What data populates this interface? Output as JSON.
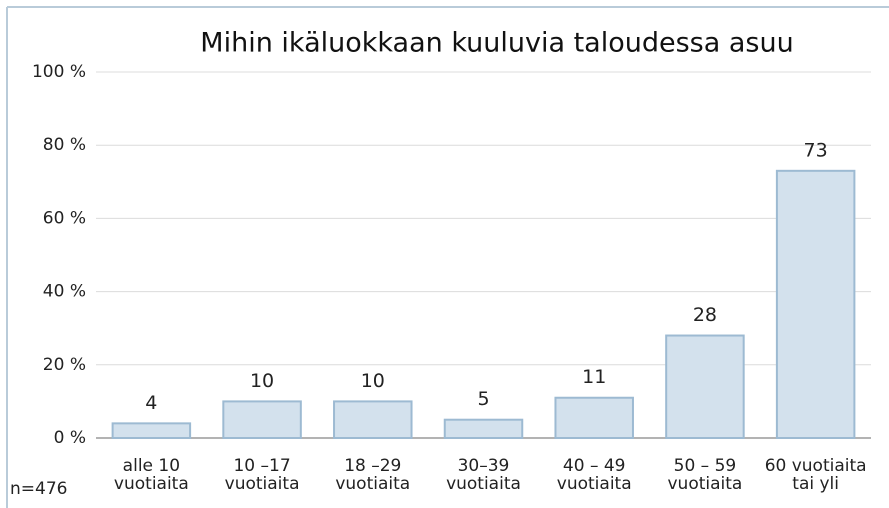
{
  "chart_data": {
    "type": "bar",
    "title": "Mihin ikäluokkaan kuuluvia taloudessa asuu",
    "categories": [
      [
        "alle 10",
        "vuotiaita"
      ],
      [
        "10 –17",
        "vuotiaita"
      ],
      [
        "18 –29",
        "vuotiaita"
      ],
      [
        "30–39",
        "vuotiaita"
      ],
      [
        "40 – 49",
        "vuotiaita"
      ],
      [
        "50 – 59",
        "vuotiaita"
      ],
      [
        "60 vuotiaita",
        "tai yli"
      ]
    ],
    "values": [
      4,
      10,
      10,
      5,
      11,
      28,
      73
    ],
    "color": "#d3e1ed",
    "edge_color": "#9dbad2",
    "ylim": [
      0,
      100
    ],
    "yticks": [
      {
        "value": 0,
        "label": "0 %"
      },
      {
        "value": 20,
        "label": "20 %"
      },
      {
        "value": 40,
        "label": "40 %"
      },
      {
        "value": 60,
        "label": "60 %"
      },
      {
        "value": 80,
        "label": "80 %"
      },
      {
        "value": 100,
        "label": "100 %"
      }
    ],
    "grid": true,
    "annotation": "n=476"
  }
}
